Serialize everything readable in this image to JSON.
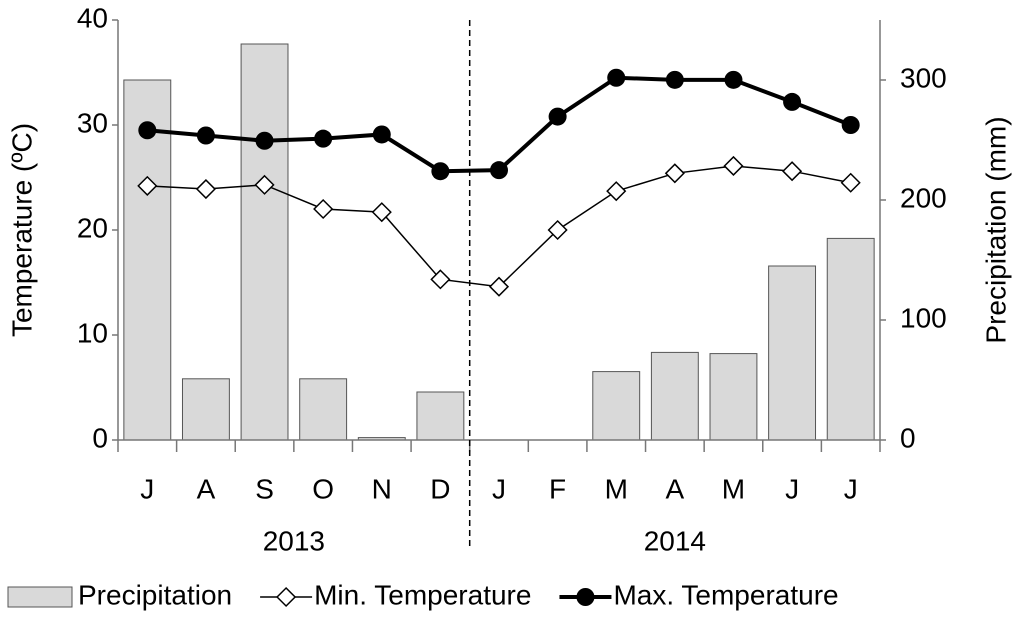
{
  "chart_data": {
    "type": "bar-line",
    "categories": [
      "J",
      "A",
      "S",
      "O",
      "N",
      "D",
      "J",
      "F",
      "M",
      "A",
      "M",
      "J",
      "J"
    ],
    "years": [
      "2013",
      "2014"
    ],
    "y_label": "Temperature (ºC)",
    "y2_label": "Precipitation (mm)",
    "ylim": [
      0,
      40
    ],
    "yticks": [
      0,
      10,
      20,
      30,
      40
    ],
    "y2lim": [
      0,
      350
    ],
    "y2ticks": [
      0,
      100,
      200,
      300
    ],
    "legend": "bottom",
    "series": [
      {
        "name": "Precipitation",
        "type": "bar",
        "axis": "y2",
        "color": "#d9d9d9",
        "values": [
          300,
          51,
          330,
          51,
          2,
          40,
          0,
          0,
          57,
          73,
          72,
          145,
          168
        ]
      },
      {
        "name": "Min. Temperature",
        "type": "line",
        "marker": "diamond",
        "color": "#000000",
        "values": [
          24.2,
          23.9,
          24.3,
          22.0,
          21.7,
          15.3,
          14.6,
          20.0,
          23.7,
          25.4,
          26.1,
          25.6,
          24.5
        ]
      },
      {
        "name": "Max. Temperature",
        "type": "line",
        "marker": "circle",
        "color": "#000000",
        "values": [
          29.5,
          29.0,
          28.5,
          28.7,
          29.1,
          25.6,
          25.7,
          30.8,
          34.5,
          34.3,
          34.3,
          32.2,
          30.0
        ]
      }
    ]
  }
}
